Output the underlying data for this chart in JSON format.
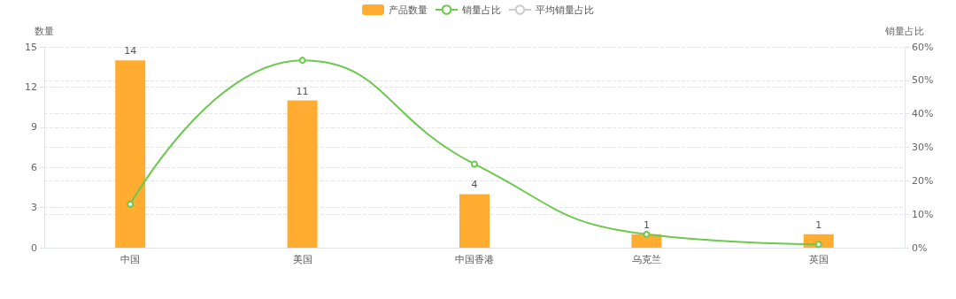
{
  "chart_data": {
    "type": "bar",
    "categories": [
      "中国",
      "美国",
      "中国香港",
      "乌克兰",
      "英国"
    ],
    "ylabel": "数量",
    "y2label": "销量占比",
    "series": [
      {
        "name": "产品数量",
        "color": "#ffac30",
        "values": [
          14,
          11,
          4,
          1,
          1
        ],
        "value_labels": [
          "14",
          "11",
          "4",
          "1",
          "1"
        ]
      },
      {
        "name": "销量占比",
        "type": "line",
        "axis": "y2",
        "color": "#6cc94f",
        "values": [
          13,
          56,
          25,
          4,
          1
        ]
      },
      {
        "name": "平均销量占比",
        "type": "line",
        "axis": "y2",
        "color": "#cccccc",
        "values": [
          null,
          null,
          null,
          null,
          null
        ]
      }
    ],
    "ylim": [
      0,
      15
    ],
    "yticks": [
      0,
      3,
      6,
      9,
      12,
      15
    ],
    "y2lim": [
      0,
      60
    ],
    "y2ticks": [
      {
        "value": 0,
        "label": "0%"
      },
      {
        "value": 10,
        "label": "10%"
      },
      {
        "value": 20,
        "label": "20%"
      },
      {
        "value": 30,
        "label": "30%"
      },
      {
        "value": 40,
        "label": "40%"
      },
      {
        "value": 50,
        "label": "50%"
      },
      {
        "value": 60,
        "label": "60%"
      }
    ],
    "grid": "y",
    "legend": "top",
    "marker": "circle",
    "line_style": "solid"
  }
}
